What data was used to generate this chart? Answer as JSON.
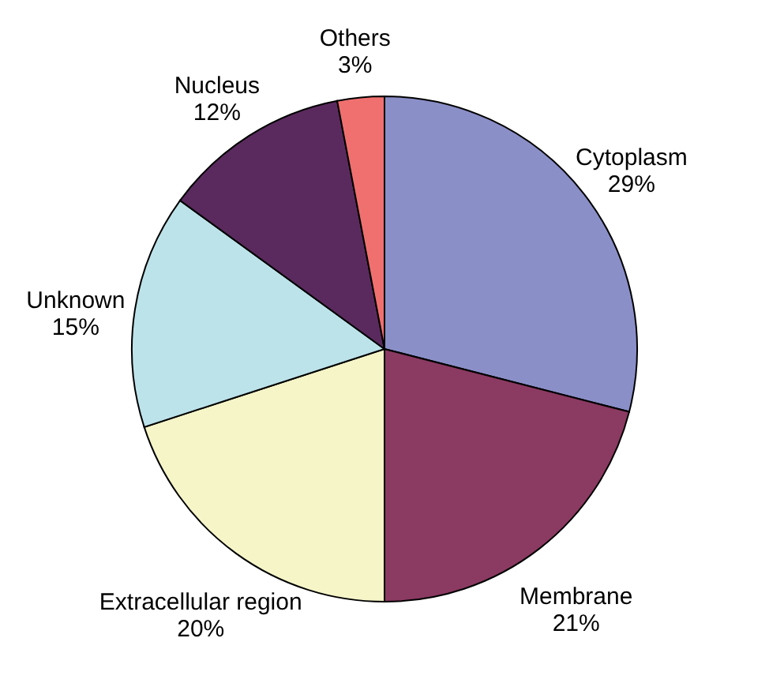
{
  "chart_data": {
    "type": "pie",
    "categories": [
      "Cytoplasm",
      "Membrane",
      "Extracellular region",
      "Unknown",
      "Nucleus",
      "Others"
    ],
    "values": [
      29,
      21,
      20,
      15,
      12,
      3
    ],
    "value_labels": [
      "29%",
      "21%",
      "20%",
      "15%",
      "12%",
      "3%"
    ],
    "colors": [
      "#8b8fc8",
      "#8b3a62",
      "#f5f5c8",
      "#bde3ea",
      "#5a2a5e",
      "#f07070"
    ]
  }
}
